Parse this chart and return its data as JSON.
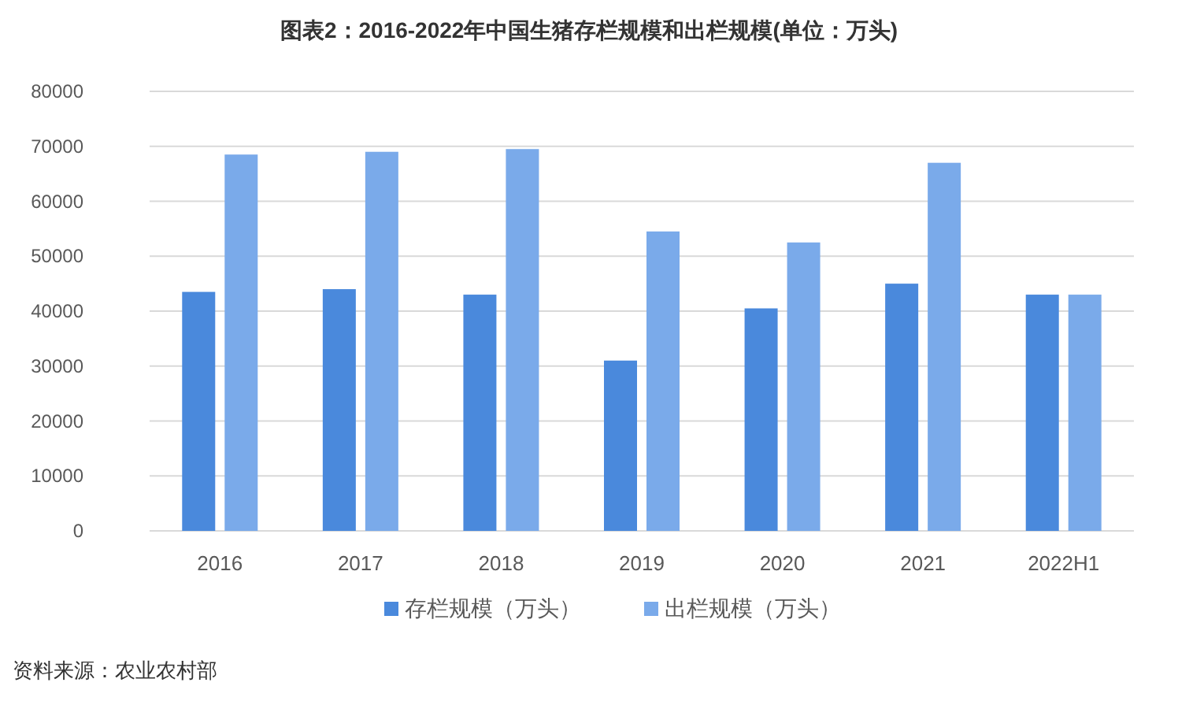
{
  "chart_data": {
    "type": "bar",
    "title": "图表2：2016-2022年中国生猪存栏规模和出栏规模(单位：万头)",
    "categories": [
      "2016",
      "2017",
      "2018",
      "2019",
      "2020",
      "2021",
      "2022H1"
    ],
    "series": [
      {
        "name": "存栏规模（万头）",
        "color": "#4a89dc",
        "values": [
          43500,
          44000,
          43000,
          31000,
          40500,
          45000,
          43000
        ]
      },
      {
        "name": "出栏规模（万头）",
        "color": "#7aaaea",
        "values": [
          68500,
          69000,
          69500,
          54500,
          52500,
          67000,
          43000
        ]
      }
    ],
    "ylim": [
      0,
      80000
    ],
    "yticks": [
      0,
      10000,
      20000,
      30000,
      40000,
      50000,
      60000,
      70000,
      80000
    ],
    "grid": "y",
    "legend": "bottom",
    "annotations": [
      "资料来源：农业农村部"
    ]
  }
}
